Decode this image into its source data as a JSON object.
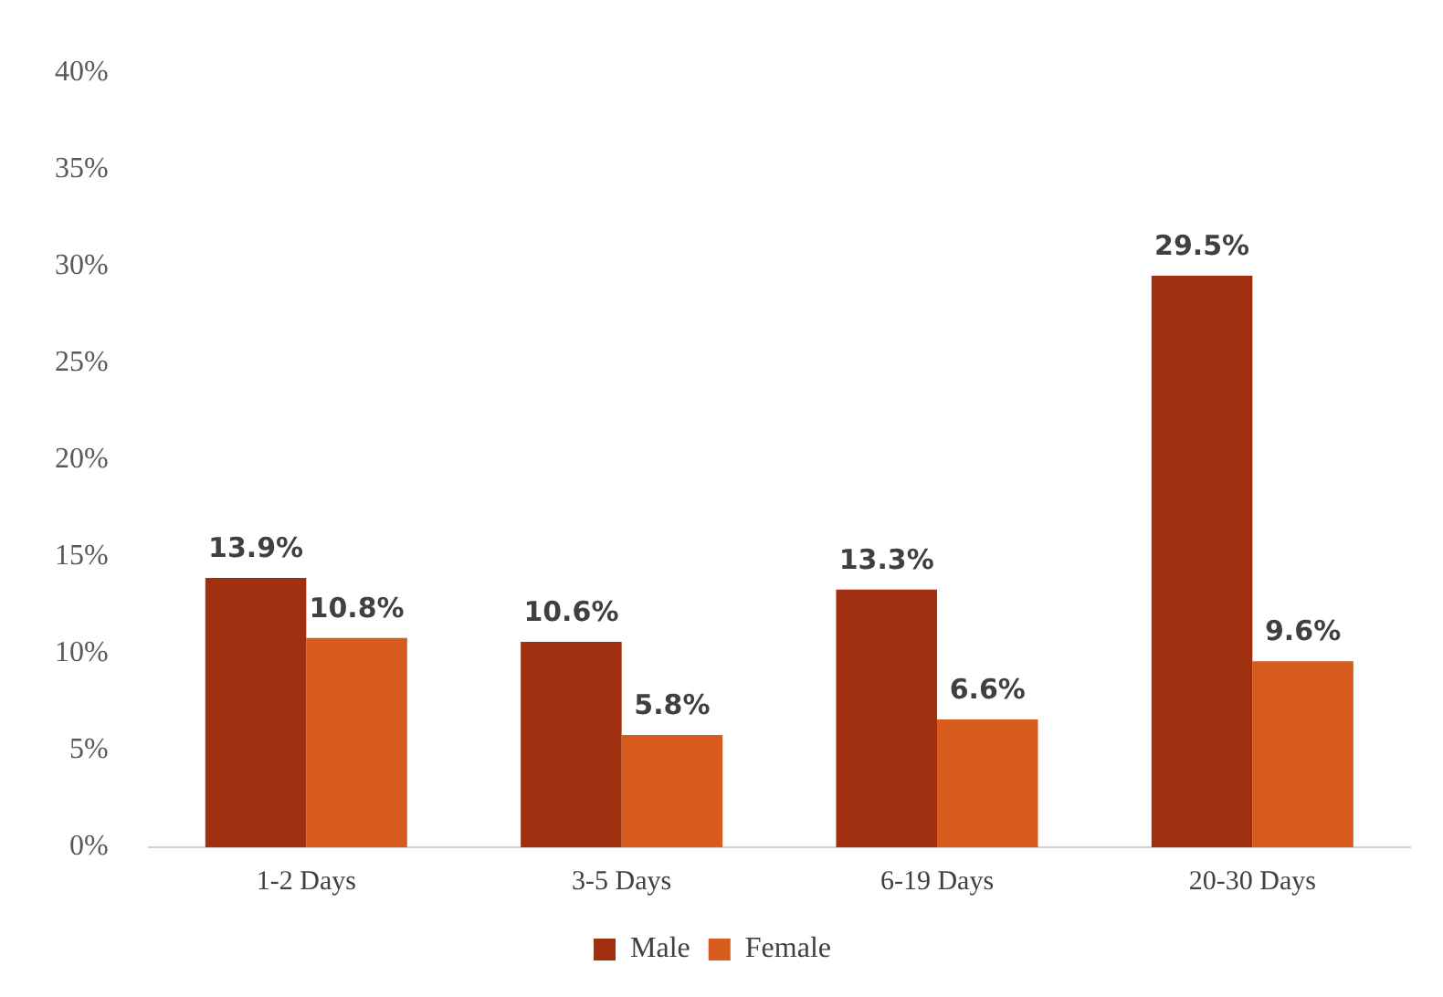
{
  "chart_data": {
    "type": "bar",
    "categories": [
      "1-2 Days",
      "3-5 Days",
      "6-19 Days",
      "20-30 Days"
    ],
    "series": [
      {
        "name": "Male",
        "color": "#a0300f",
        "values": [
          13.9,
          10.6,
          13.3,
          29.5
        ],
        "value_labels": [
          "13.9%",
          "10.6%",
          "13.3%",
          "29.5%"
        ]
      },
      {
        "name": "Female",
        "color": "#d75b1c",
        "values": [
          10.8,
          5.8,
          6.6,
          9.6
        ],
        "value_labels": [
          "10.8%",
          "5.8%",
          "6.6%",
          "9.6%"
        ]
      }
    ],
    "ylim": [
      0,
      40
    ],
    "yticks": [
      {
        "value": 0,
        "label": "0%"
      },
      {
        "value": 5,
        "label": "5%"
      },
      {
        "value": 10,
        "label": "10%"
      },
      {
        "value": 15,
        "label": "15%"
      },
      {
        "value": 20,
        "label": "20%"
      },
      {
        "value": 25,
        "label": "25%"
      },
      {
        "value": 30,
        "label": "30%"
      },
      {
        "value": 35,
        "label": "35%"
      },
      {
        "value": 40,
        "label": "40%"
      }
    ],
    "grid": false,
    "legend": "bottom"
  }
}
